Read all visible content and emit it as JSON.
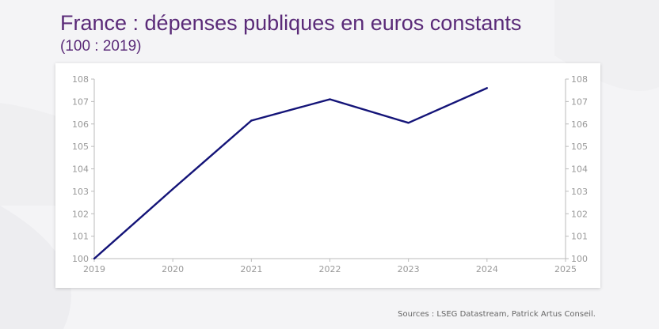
{
  "header": {
    "title": "France : dépenses publiques en euros constants",
    "subtitle": "(100 : 2019)"
  },
  "footer": {
    "sources": "Sources : LSEG Datastream, Patrick Artus Conseil."
  },
  "colors": {
    "title": "#5a2a78",
    "line": "#141478",
    "axis": "#bbbbbb",
    "tick_text": "#999999"
  },
  "chart_data": {
    "type": "line",
    "title": "France : dépenses publiques en euros constants",
    "subtitle": "(100 : 2019)",
    "xlabel": "",
    "ylabel": "",
    "x_ticks": [
      "2019",
      "2020",
      "2021",
      "2022",
      "2023",
      "2024",
      "2025"
    ],
    "xlim": [
      2019,
      2025
    ],
    "ylim": [
      100,
      108
    ],
    "y_ticks": [
      "100",
      "101",
      "102",
      "103",
      "104",
      "105",
      "106",
      "107",
      "108"
    ],
    "grid": false,
    "legend": "none",
    "series": [
      {
        "name": "Dépenses publiques (euros constants)",
        "x": [
          2019,
          2020,
          2021,
          2022,
          2023,
          2024
        ],
        "values": [
          100,
          103.1,
          106.15,
          107.1,
          106.05,
          107.6
        ]
      }
    ]
  }
}
